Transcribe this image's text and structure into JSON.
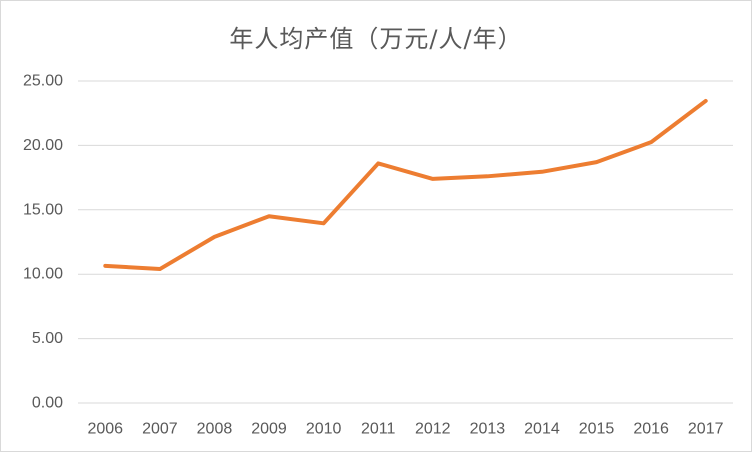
{
  "chart_data": {
    "type": "line",
    "title": "年人均产值（万元/人/年）",
    "xlabel": "",
    "ylabel": "",
    "categories": [
      "2006",
      "2007",
      "2008",
      "2009",
      "2010",
      "2011",
      "2012",
      "2013",
      "2014",
      "2015",
      "2016",
      "2017"
    ],
    "series": [
      {
        "values": [
          10.65,
          10.4,
          12.9,
          14.5,
          13.95,
          18.6,
          17.4,
          17.6,
          17.95,
          18.7,
          20.25,
          23.45
        ],
        "color": "#ED7D31"
      }
    ],
    "ylim": [
      0,
      25
    ],
    "yticks": [
      "0.00",
      "5.00",
      "10.00",
      "15.00",
      "20.00",
      "25.00"
    ],
    "grid": true,
    "legend": "none"
  }
}
